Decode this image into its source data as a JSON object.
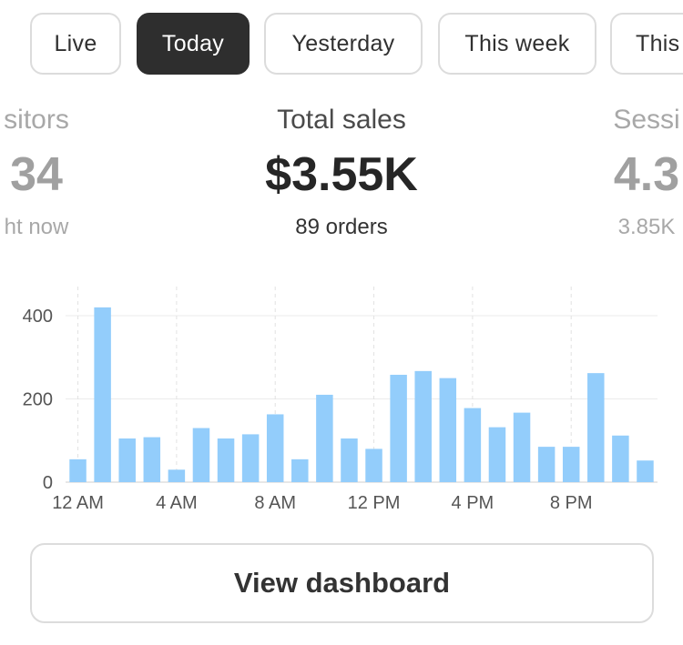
{
  "tabs": [
    {
      "label": "Live",
      "active": false
    },
    {
      "label": "Today",
      "active": true
    },
    {
      "label": "Yesterday",
      "active": false
    },
    {
      "label": "This week",
      "active": false
    },
    {
      "label": "This",
      "active": false
    }
  ],
  "metrics": {
    "left": {
      "label": "sitors",
      "value": "34",
      "sub": "ht now"
    },
    "center": {
      "label": "Total sales",
      "value": "$3.55K",
      "sub": "89 orders"
    },
    "right": {
      "label": "Sessi",
      "value": "4.3",
      "sub": "3.85K"
    }
  },
  "chart_data": {
    "type": "bar",
    "categories": [
      "12 AM",
      "1 AM",
      "2 AM",
      "3 AM",
      "4 AM",
      "5 AM",
      "6 AM",
      "7 AM",
      "8 AM",
      "9 AM",
      "10 AM",
      "11 AM",
      "12 PM",
      "1 PM",
      "2 PM",
      "3 PM",
      "4 PM",
      "5 PM",
      "6 PM",
      "7 PM",
      "8 PM",
      "9 PM",
      "10 PM",
      "11 PM"
    ],
    "values": [
      55,
      420,
      105,
      108,
      30,
      130,
      105,
      115,
      163,
      55,
      210,
      105,
      80,
      258,
      267,
      250,
      178,
      132,
      167,
      85,
      85,
      262,
      112,
      52
    ],
    "ylim": [
      0,
      470
    ],
    "yticks": [
      0,
      200,
      400
    ],
    "xtick_labels": [
      "12 AM",
      "4 AM",
      "8 AM",
      "12 PM",
      "4 PM",
      "8 PM"
    ],
    "bar_color": "#93cdfb",
    "grid": true
  },
  "dashboard_button": {
    "label": "View dashboard"
  }
}
